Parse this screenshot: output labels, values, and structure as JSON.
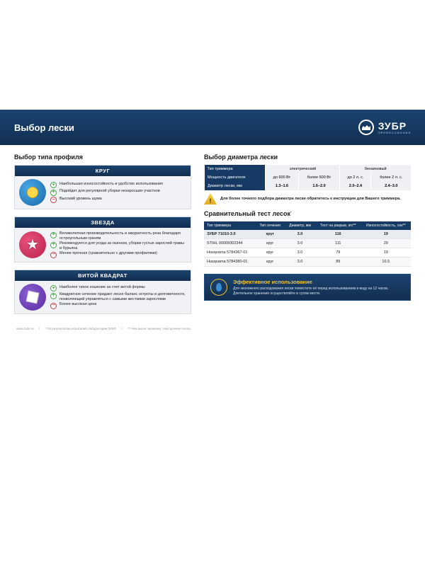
{
  "header": {
    "title": "Выбор лески",
    "brand": "ЗУБР",
    "brand_sub": "ПРОФЕССИОНАЛ"
  },
  "left": {
    "heading": "Выбор типа профиля",
    "profiles": [
      {
        "title": "КРУГ",
        "icon": "circle",
        "items": [
          {
            "type": "plus",
            "text": "Наибольшая износостойкость и удобство использования"
          },
          {
            "type": "plus",
            "text": "Подойдет для регулярной уборки незаросших участков"
          },
          {
            "type": "minus",
            "text": "Высокий уровень шума"
          }
        ]
      },
      {
        "title": "ЗВЕЗДА",
        "icon": "star",
        "items": [
          {
            "type": "plus",
            "text": "Великолепная производительность и аккуратность реза благодаря остроугольным граням"
          },
          {
            "type": "plus",
            "text": "Рекомендуется для ухода за газоном, уборки густых зарослей травы и бурьяна"
          },
          {
            "type": "minus",
            "text": "Менее прочная (сравнительно с другими профилями)"
          }
        ]
      },
      {
        "title": "ВИТОЙ КВАДРАТ",
        "icon": "square",
        "items": [
          {
            "type": "plus",
            "text": "Наиболее тихое кошение за счет витой формы"
          },
          {
            "type": "plus",
            "text": "Квадратное сечение придает леске баланс остроты и долговечности, позволяющий управляться с самыми жесткими зарослями"
          },
          {
            "type": "minus",
            "text": "Более высокая цена"
          }
        ]
      }
    ]
  },
  "right": {
    "diam_heading": "Выбор диаметра лески",
    "diam_rows": {
      "r1_label": "Тип триммера",
      "r1_a": "электрический",
      "r1_b": "бензиновый",
      "r2_label": "Мощность двигателя",
      "r2_a": "до 600 Вт",
      "r2_b": "более 600 Вт",
      "r2_c": "до 2 л. с.",
      "r2_d": "более 2 л. с.",
      "r3_label": "Диаметр лески, мм",
      "r3_a": "1.3–1.6",
      "r3_b": "1.6–2.0",
      "r3_c": "2.0–2.4",
      "r3_d": "2.4–3.0"
    },
    "warn": "Для более точного подбора диаметра лески обратитесь к инструкции для Вашего триммера.",
    "comp_heading": "Сравнительный тест лесок",
    "comp_heading_sup": "*",
    "comp_cols": [
      "Тип триммера",
      "Тип сечения",
      "Диаметр, мм",
      "Тест на разрыв, кгс**",
      "Износостойкость, сек**"
    ],
    "comp_rows": [
      {
        "hl": true,
        "c": [
          "ЗУБР 71010-3.0",
          "круг",
          "3.0",
          "116",
          "19"
        ]
      },
      {
        "hl": false,
        "c": [
          "STIHL 00009302344",
          "круг",
          "3.0",
          "111",
          "20"
        ]
      },
      {
        "hl": false,
        "c": [
          "Husqvarna 5784367-01",
          "круг",
          "3.0",
          "79",
          "19"
        ]
      },
      {
        "hl": false,
        "c": [
          "Husqvarna 5784380-01",
          "круг",
          "3.0",
          "89",
          "16.5"
        ]
      }
    ],
    "info_title": "Эффективное использование",
    "info_body": "Для экономного расходования лески поместите её перед использованием в воду на 12 часов. Длительное хранение осуществляйте в сухом месте."
  },
  "footer": {
    "site": "www.zubr.ru",
    "note1": "* По результатам испытаний лаборатории ЗУБР.",
    "note2": "** Чем выше значение, тем прочнее леска."
  }
}
